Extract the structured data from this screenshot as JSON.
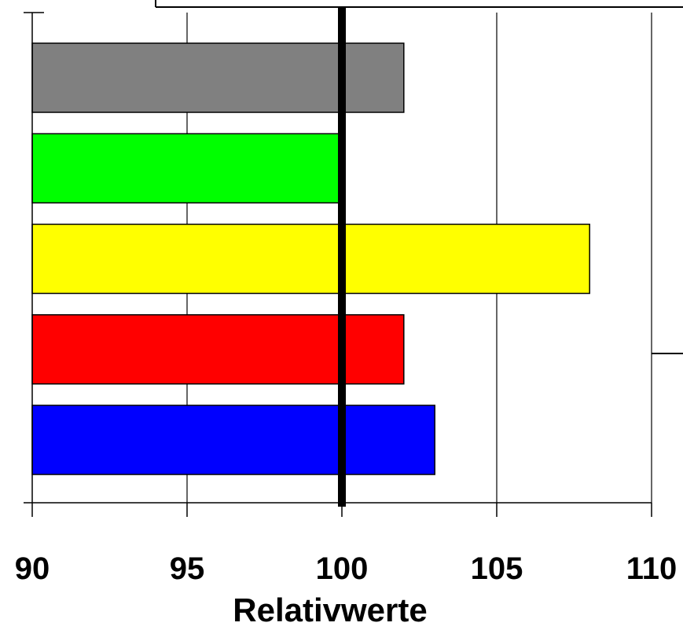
{
  "chart_data": {
    "type": "bar",
    "orientation": "horizontal",
    "xlabel": "Relativwerte",
    "xlim": [
      90,
      110
    ],
    "xticks": [
      "90",
      "95",
      "100",
      "105",
      "110"
    ],
    "grid": "vertical",
    "reference_line": 100,
    "bars": [
      {
        "value": 102,
        "color": "#808080"
      },
      {
        "value": 99.9,
        "color": "#00ff00"
      },
      {
        "value": 108,
        "color": "#ffff00"
      },
      {
        "value": 102,
        "color": "#ff0000"
      },
      {
        "value": 103,
        "color": "#0000ff"
      }
    ]
  }
}
